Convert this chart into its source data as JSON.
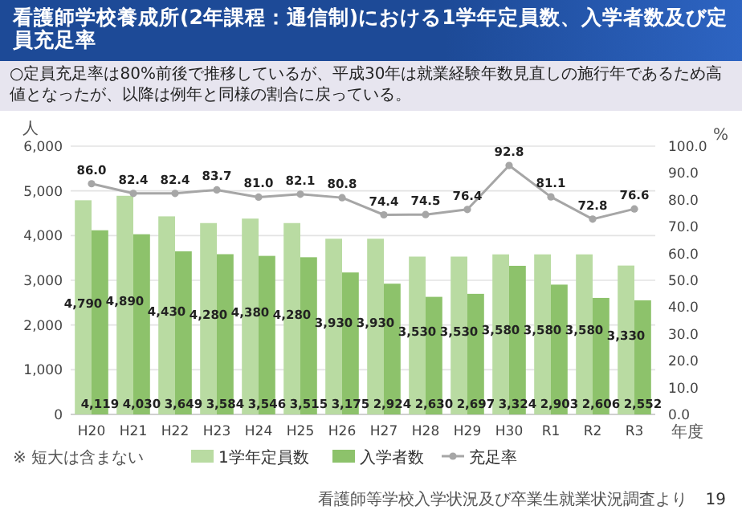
{
  "chart_data": {
    "type": "bar",
    "title": "看護師学校養成所(2年課程：通信制)における1学年定員数、入学者数及び定員充足率",
    "subtitle": "○定員充足率は80%前後で推移しているが、平成30年は就業経験年数見直しの施行年であるため高値となったが、以降は例年と同様の割合に戻っている。",
    "ylabel": "人",
    "y2label": "%",
    "xlabel": "年度",
    "categories": [
      "H20",
      "H21",
      "H22",
      "H23",
      "H24",
      "H25",
      "H26",
      "H27",
      "H28",
      "H29",
      "H30",
      "R1",
      "R2",
      "R3"
    ],
    "series": [
      {
        "name": "1学年定員数",
        "color": "#b9dba2",
        "values": [
          4790,
          4890,
          4430,
          4280,
          4380,
          4280,
          3930,
          3930,
          3530,
          3530,
          3580,
          3580,
          3580,
          3330
        ],
        "value_labels": [
          "4,790",
          "4,890",
          "4,430",
          "4,280",
          "4,380",
          "4,280",
          "3,930",
          "3,930",
          "3,530",
          "3,530",
          "3,580",
          "3,580",
          "3,580",
          "3,330"
        ]
      },
      {
        "name": "入学者数",
        "color": "#8dc26b",
        "values": [
          4119,
          4030,
          3649,
          3584,
          3546,
          3515,
          3175,
          2924,
          2630,
          2697,
          3324,
          2903,
          2606,
          2552
        ],
        "value_labels": [
          "4,119",
          "4,030",
          "3,649",
          "3,584",
          "3,546",
          "3,515",
          "3,175",
          "2,924",
          "2,630",
          "2,697",
          "3,324",
          "2,903",
          "2,606",
          "2,552"
        ]
      },
      {
        "name": "充足率",
        "type": "line",
        "axis": "y2",
        "color": "#a6a6a6",
        "marker": "circle",
        "values": [
          86.0,
          82.4,
          82.4,
          83.7,
          81.0,
          82.1,
          80.8,
          74.4,
          74.5,
          76.4,
          92.8,
          81.1,
          72.8,
          76.6
        ],
        "value_labels": [
          "86.0",
          "82.4",
          "82.4",
          "83.7",
          "81.0",
          "82.1",
          "80.8",
          "74.4",
          "74.5",
          "76.4",
          "92.8",
          "81.1",
          "72.8",
          "76.6"
        ]
      }
    ],
    "ylim": [
      0,
      6000
    ],
    "yticks": [
      {
        "value": 0,
        "label": "0"
      },
      {
        "value": 1000,
        "label": "1,000"
      },
      {
        "value": 2000,
        "label": "2,000"
      },
      {
        "value": 3000,
        "label": "3,000"
      },
      {
        "value": 4000,
        "label": "4,000"
      },
      {
        "value": 5000,
        "label": "5,000"
      },
      {
        "value": 6000,
        "label": "6,000"
      }
    ],
    "y2lim": [
      0,
      100
    ],
    "y2ticks": [
      {
        "value": 0,
        "label": "0.0"
      },
      {
        "value": 10,
        "label": "10.0"
      },
      {
        "value": 20,
        "label": "20.0"
      },
      {
        "value": 30,
        "label": "30.0"
      },
      {
        "value": 40,
        "label": "40.0"
      },
      {
        "value": 50,
        "label": "50.0"
      },
      {
        "value": 60,
        "label": "60.0"
      },
      {
        "value": 70,
        "label": "70.0"
      },
      {
        "value": 80,
        "label": "80.0"
      },
      {
        "value": 90,
        "label": "90.0"
      },
      {
        "value": 100,
        "label": "100.0"
      }
    ],
    "grid": "y",
    "legend": "bottom",
    "annotations": [
      "※ 短大は含まない",
      "看護師等学校入学状況及び卒業生就業状況調査より",
      "19"
    ]
  }
}
